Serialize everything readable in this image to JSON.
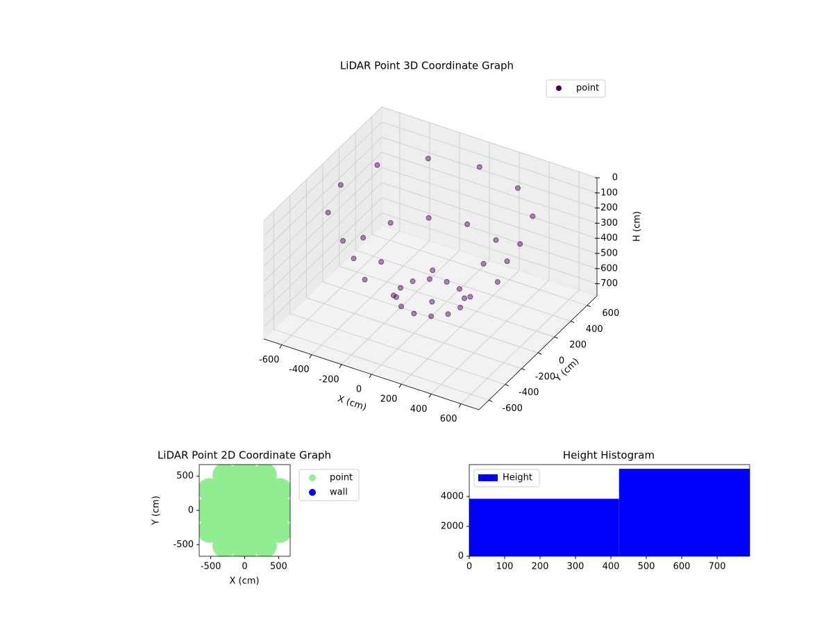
{
  "chart_data": [
    {
      "type": "scatter3d",
      "title": "LiDAR Point 3D Coordinate Graph",
      "xlabel": "X (cm)",
      "ylabel": "Y (cm)",
      "zlabel": "H (cm)",
      "xlim": [
        -720,
        720
      ],
      "ylim": [
        -720,
        720
      ],
      "zlim": [
        0,
        780
      ],
      "z_inverted": true,
      "grid": true,
      "legend": "upper right",
      "xticks": [
        -600,
        -400,
        -200,
        0,
        200,
        400,
        600
      ],
      "yticks": [
        -600,
        -400,
        -200,
        0,
        200,
        400,
        600
      ],
      "zticks": [
        0,
        100,
        200,
        300,
        400,
        500,
        600,
        700
      ],
      "series": [
        {
          "name": "point",
          "color": "#440154",
          "x": [
            600,
            520,
            300,
            0,
            -300,
            -520,
            -600,
            -520,
            -300,
            0,
            300,
            520,
            450,
            390,
            225,
            0,
            -225,
            -390,
            -450,
            -390,
            -225,
            0,
            225,
            390,
            200,
            173,
            100,
            0,
            -100,
            -173,
            -200,
            -173,
            -100,
            0,
            100,
            173
          ],
          "y": [
            0,
            300,
            520,
            600,
            520,
            300,
            0,
            -300,
            -520,
            -600,
            -520,
            -300,
            0,
            225,
            390,
            450,
            390,
            225,
            0,
            -225,
            -390,
            -450,
            -390,
            -225,
            0,
            100,
            173,
            200,
            173,
            100,
            0,
            -100,
            -173,
            -200,
            -173,
            -100
          ],
          "z": [
            100,
            100,
            100,
            100,
            100,
            100,
            100,
            100,
            100,
            100,
            100,
            100,
            400,
            400,
            400,
            400,
            400,
            400,
            400,
            400,
            400,
            400,
            400,
            400,
            650,
            650,
            650,
            650,
            650,
            650,
            650,
            650,
            650,
            650,
            650,
            650
          ]
        }
      ]
    },
    {
      "type": "scatter",
      "title": "LiDAR Point 2D Coordinate Graph",
      "xlabel": "X (cm)",
      "ylabel": "Y (cm)",
      "xlim": [
        -670,
        670
      ],
      "ylim": [
        -670,
        670
      ],
      "xticks": [
        -500,
        0,
        500
      ],
      "yticks": [
        -500,
        0,
        500
      ],
      "legend": "outside right",
      "series": [
        {
          "name": "point",
          "color": "lightgreen",
          "x": [
            600,
            520,
            300,
            0,
            -300,
            -520,
            -600,
            -520,
            -300,
            0,
            300,
            520,
            450,
            390,
            225,
            0,
            -225,
            -390,
            -450,
            -390,
            -225,
            0,
            225,
            390,
            200,
            173,
            100,
            0,
            -100,
            -173,
            -200,
            -173,
            -100,
            0,
            100,
            173,
            0
          ],
          "y": [
            0,
            300,
            520,
            600,
            520,
            300,
            0,
            -300,
            -520,
            -600,
            -520,
            -300,
            0,
            225,
            390,
            450,
            390,
            225,
            0,
            -225,
            -390,
            -450,
            -390,
            -225,
            0,
            100,
            173,
            200,
            173,
            100,
            0,
            -100,
            -173,
            -200,
            -173,
            -100,
            0
          ]
        },
        {
          "name": "wall",
          "color": "blue",
          "x": [],
          "y": []
        }
      ]
    },
    {
      "type": "histogram",
      "title": "Height Histogram",
      "bins": [
        0,
        423,
        792
      ],
      "xlim": [
        0,
        792
      ],
      "ylim": [
        0,
        6140
      ],
      "xticks": [
        0,
        100,
        200,
        300,
        400,
        500,
        600,
        700
      ],
      "yticks": [
        0,
        2000,
        4000
      ],
      "legend": "upper left",
      "series": [
        {
          "name": "Height",
          "color": "blue",
          "values": [
            3850,
            5860
          ]
        }
      ]
    }
  ]
}
